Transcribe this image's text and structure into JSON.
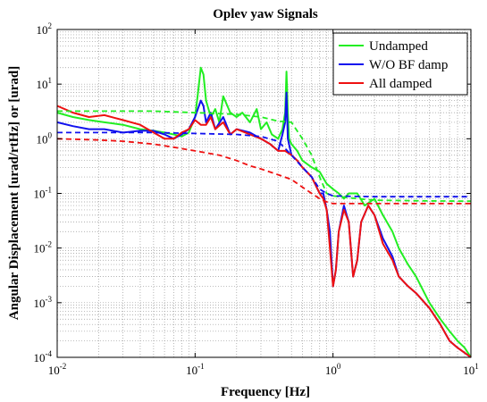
{
  "chart_data": {
    "type": "line",
    "title": "Oplev yaw Signals",
    "xlabel": "Frequency [Hz]",
    "ylabel": "Angular Displacement [urad/rtHz] or [urad]",
    "xscale": "log",
    "yscale": "log",
    "xlim": [
      0.01,
      10
    ],
    "ylim": [
      0.0001,
      100
    ],
    "grid": true,
    "legend_position": "top-right",
    "xticks": [
      {
        "base": "10",
        "exp": "-2"
      },
      {
        "base": "10",
        "exp": "-1"
      },
      {
        "base": "10",
        "exp": "0"
      },
      {
        "base": "10",
        "exp": "1"
      }
    ],
    "yticks": [
      {
        "base": "10",
        "exp": "-4"
      },
      {
        "base": "10",
        "exp": "-3"
      },
      {
        "base": "10",
        "exp": "-2"
      },
      {
        "base": "10",
        "exp": "-1"
      },
      {
        "base": "10",
        "exp": "0"
      },
      {
        "base": "10",
        "exp": "1"
      },
      {
        "base": "10",
        "exp": "2"
      }
    ],
    "series": [
      {
        "name": "Undamped",
        "color": "#22ee22",
        "style": "solid",
        "x": [
          0.01,
          0.013,
          0.017,
          0.022,
          0.03,
          0.04,
          0.05,
          0.06,
          0.07,
          0.08,
          0.09,
          0.1,
          0.105,
          0.11,
          0.115,
          0.12,
          0.13,
          0.14,
          0.15,
          0.16,
          0.18,
          0.2,
          0.22,
          0.25,
          0.28,
          0.3,
          0.33,
          0.36,
          0.4,
          0.43,
          0.45,
          0.46,
          0.47,
          0.48,
          0.5,
          0.55,
          0.6,
          0.7,
          0.8,
          0.9,
          1.0,
          1.1,
          1.2,
          1.3,
          1.5,
          1.7,
          2.0,
          2.3,
          2.7,
          3.0,
          3.5,
          4.0,
          5.0,
          6.0,
          7.0,
          8.0,
          9.0,
          10.0
        ],
        "y": [
          3.0,
          2.5,
          2.2,
          2.0,
          1.8,
          1.5,
          1.4,
          1.3,
          1.2,
          1.1,
          1.3,
          2.5,
          7.0,
          20.0,
          15.0,
          5.0,
          2.5,
          3.5,
          2.0,
          6.0,
          3.0,
          2.5,
          3.0,
          2.0,
          3.5,
          1.5,
          2.0,
          1.2,
          1.0,
          1.5,
          3.0,
          17.0,
          3.0,
          1.0,
          0.8,
          0.6,
          0.4,
          0.3,
          0.25,
          0.15,
          0.12,
          0.1,
          0.08,
          0.1,
          0.1,
          0.06,
          0.08,
          0.04,
          0.02,
          0.01,
          0.005,
          0.003,
          0.001,
          0.0005,
          0.0003,
          0.0002,
          0.00015,
          0.0001
        ]
      },
      {
        "name": "W/O BF damp",
        "color": "#1111ee",
        "style": "solid",
        "x": [
          0.01,
          0.013,
          0.017,
          0.022,
          0.03,
          0.04,
          0.05,
          0.06,
          0.07,
          0.08,
          0.09,
          0.1,
          0.11,
          0.115,
          0.12,
          0.13,
          0.14,
          0.16,
          0.18,
          0.2,
          0.25,
          0.3,
          0.35,
          0.4,
          0.43,
          0.45,
          0.46,
          0.47,
          0.5,
          0.55,
          0.6,
          0.7,
          0.8,
          0.85,
          0.9,
          0.95,
          1.0,
          1.05,
          1.1,
          1.2,
          1.3,
          1.4,
          1.5,
          1.6,
          1.8,
          2.0,
          2.3,
          2.7,
          3.0,
          3.5,
          4.0,
          5.0,
          6.0,
          7.0,
          8.0,
          10.0
        ],
        "y": [
          2.0,
          1.7,
          1.5,
          1.5,
          1.3,
          1.4,
          1.4,
          1.2,
          1.0,
          1.2,
          1.5,
          2.5,
          5.0,
          4.0,
          2.0,
          3.0,
          1.5,
          2.5,
          1.2,
          1.5,
          1.3,
          1.0,
          0.8,
          0.6,
          1.2,
          2.0,
          7.0,
          1.0,
          0.5,
          0.4,
          0.3,
          0.2,
          0.1,
          0.1,
          0.05,
          0.02,
          0.002,
          0.004,
          0.02,
          0.06,
          0.03,
          0.003,
          0.006,
          0.03,
          0.06,
          0.04,
          0.015,
          0.007,
          0.003,
          0.002,
          0.0015,
          0.0008,
          0.0004,
          0.0002,
          0.00015,
          0.0001
        ]
      },
      {
        "name": "All damped",
        "color": "#ee1111",
        "style": "solid",
        "x": [
          0.01,
          0.013,
          0.017,
          0.022,
          0.03,
          0.04,
          0.05,
          0.06,
          0.07,
          0.08,
          0.09,
          0.1,
          0.11,
          0.12,
          0.13,
          0.14,
          0.16,
          0.18,
          0.2,
          0.25,
          0.3,
          0.35,
          0.4,
          0.45,
          0.5,
          0.55,
          0.6,
          0.7,
          0.8,
          0.85,
          0.9,
          0.95,
          1.0,
          1.05,
          1.1,
          1.2,
          1.3,
          1.4,
          1.5,
          1.6,
          1.8,
          2.0,
          2.3,
          2.7,
          3.0,
          3.5,
          4.0,
          5.0,
          6.0,
          7.0,
          8.0,
          10.0
        ],
        "y": [
          4.0,
          3.0,
          2.5,
          2.7,
          2.2,
          1.8,
          1.3,
          1.0,
          1.0,
          1.3,
          1.5,
          2.2,
          1.8,
          1.8,
          2.5,
          1.5,
          2.0,
          1.2,
          1.5,
          1.2,
          1.0,
          0.8,
          0.6,
          0.6,
          0.5,
          0.4,
          0.3,
          0.2,
          0.1,
          0.08,
          0.05,
          0.01,
          0.002,
          0.004,
          0.02,
          0.05,
          0.03,
          0.003,
          0.006,
          0.03,
          0.06,
          0.04,
          0.012,
          0.006,
          0.003,
          0.002,
          0.0015,
          0.0008,
          0.0004,
          0.0002,
          0.00015,
          0.0001
        ]
      },
      {
        "name": "",
        "color": "#22ee22",
        "style": "dashed",
        "x": [
          0.01,
          0.05,
          0.1,
          0.2,
          0.3,
          0.4,
          0.5,
          0.6,
          0.7,
          0.8,
          0.9,
          1.0,
          1.5,
          2.0,
          5.0,
          10.0
        ],
        "y": [
          3.2,
          3.2,
          3.0,
          2.8,
          2.5,
          2.1,
          2.0,
          1.0,
          0.5,
          0.2,
          0.1,
          0.09,
          0.08,
          0.075,
          0.073,
          0.072
        ]
      },
      {
        "name": "",
        "color": "#1111ee",
        "style": "dashed",
        "x": [
          0.01,
          0.05,
          0.1,
          0.2,
          0.3,
          0.4,
          0.5,
          0.6,
          0.7,
          0.8,
          0.9,
          1.0,
          1.5,
          2.0,
          5.0,
          10.0
        ],
        "y": [
          1.3,
          1.3,
          1.25,
          1.2,
          1.1,
          0.9,
          0.5,
          0.3,
          0.2,
          0.12,
          0.1,
          0.09,
          0.088,
          0.087,
          0.087,
          0.087
        ]
      },
      {
        "name": "",
        "color": "#ee1111",
        "style": "dashed",
        "x": [
          0.01,
          0.02,
          0.03,
          0.05,
          0.07,
          0.1,
          0.15,
          0.2,
          0.25,
          0.3,
          0.4,
          0.5,
          0.6,
          0.7,
          0.8,
          0.9,
          1.0,
          1.5,
          2.0,
          5.0,
          10.0
        ],
        "y": [
          1.0,
          0.95,
          0.9,
          0.8,
          0.7,
          0.6,
          0.5,
          0.4,
          0.32,
          0.28,
          0.22,
          0.18,
          0.13,
          0.1,
          0.08,
          0.07,
          0.065,
          0.065,
          0.065,
          0.065,
          0.065
        ]
      }
    ]
  }
}
